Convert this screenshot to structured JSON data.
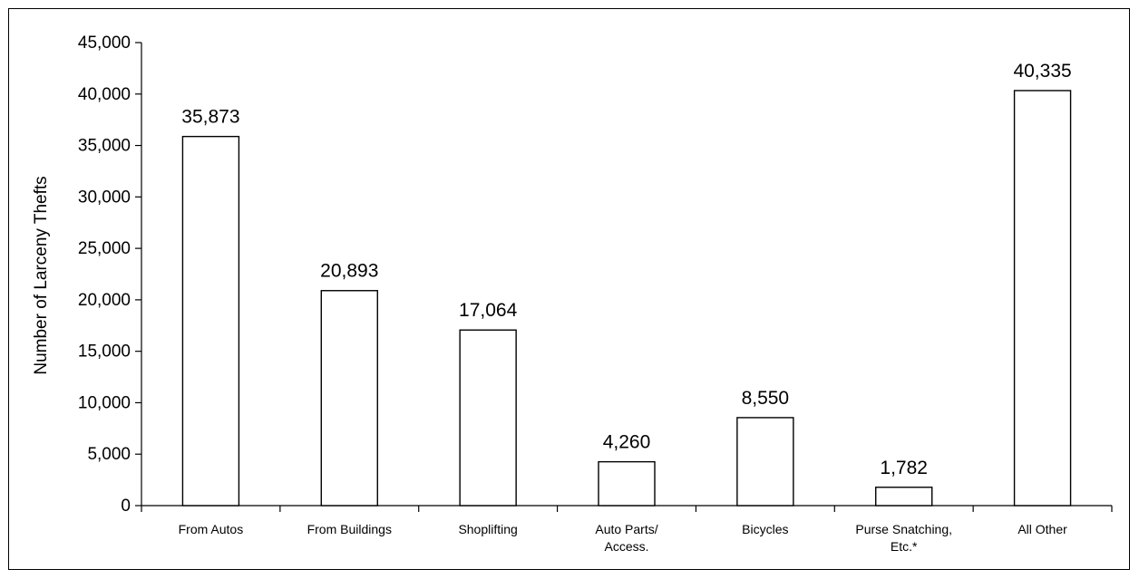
{
  "chart_data": {
    "type": "bar",
    "title": "",
    "xlabel": "",
    "ylabel": "Number of Larceny Thefts",
    "categories": [
      [
        "From Autos"
      ],
      [
        "From Buildings"
      ],
      [
        "Shoplifting"
      ],
      [
        "Auto Parts/",
        "Access."
      ],
      [
        "Bicycles"
      ],
      [
        "Purse Snatching,",
        "Etc.*"
      ],
      [
        "All Other"
      ]
    ],
    "values": [
      35873,
      20893,
      17064,
      4260,
      8550,
      1782,
      40335
    ],
    "value_labels": [
      "35,873",
      "20,893",
      "17,064",
      "4,260",
      "8,550",
      "1,782",
      "40,335"
    ],
    "ylim": [
      0,
      45000
    ],
    "yticks": [
      0,
      5000,
      10000,
      15000,
      20000,
      25000,
      30000,
      35000,
      40000,
      45000
    ],
    "ytick_labels": [
      "0",
      "5,000",
      "10,000",
      "15,000",
      "20,000",
      "25,000",
      "30,000",
      "35,000",
      "40,000",
      "45,000"
    ],
    "grid": false,
    "legend": "none",
    "bar_fill": "#ffffff",
    "bar_stroke": "#000000"
  }
}
